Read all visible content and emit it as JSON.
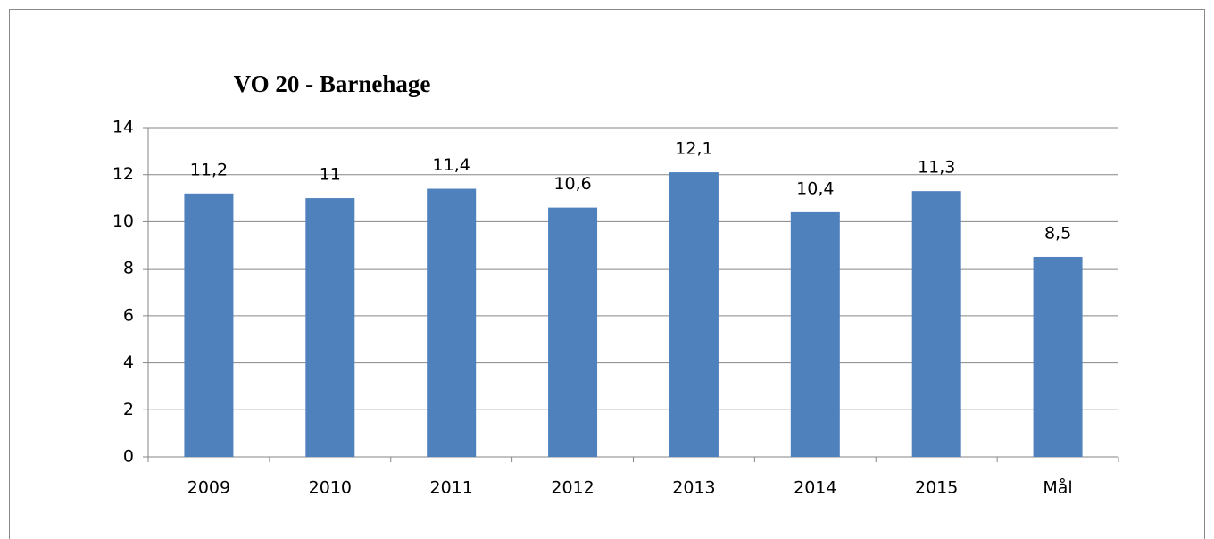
{
  "chart_data": {
    "type": "bar",
    "title": "VO 20 - Barnehage",
    "categories": [
      "2009",
      "2010",
      "2011",
      "2012",
      "2013",
      "2014",
      "2015",
      "Mål"
    ],
    "values": [
      11.2,
      11,
      11.4,
      10.6,
      12.1,
      10.4,
      11.3,
      8.5
    ],
    "value_labels": [
      "11,2",
      "11",
      "11,4",
      "10,6",
      "12,1",
      "10,4",
      "11,3",
      "8,5"
    ],
    "color": "#4f81bd",
    "ylim": [
      0,
      14
    ],
    "yticks": [
      0,
      2,
      4,
      6,
      8,
      10,
      12,
      14
    ],
    "grid": true
  }
}
